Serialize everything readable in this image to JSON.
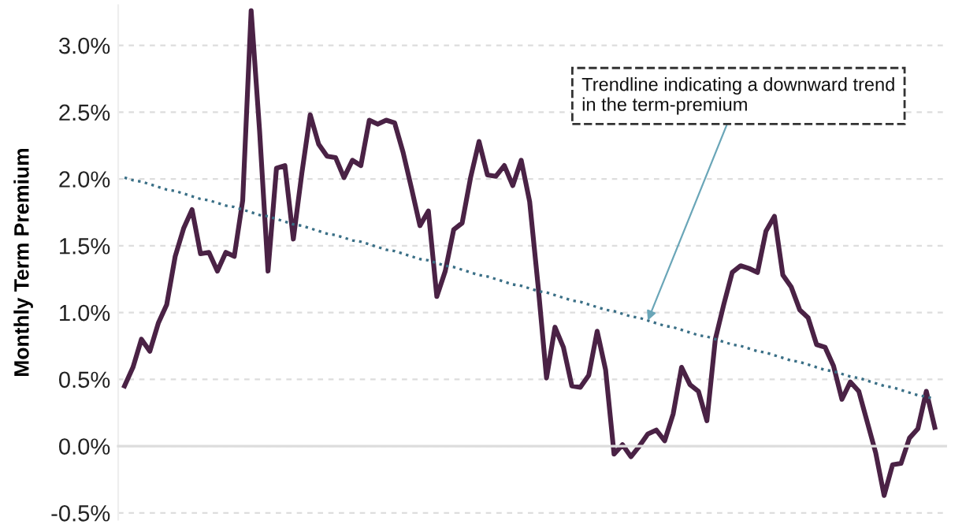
{
  "chart_data": {
    "type": "line",
    "ylabel": "Monthly Term Premium",
    "annotations": [
      "Trendline indicating a downward trend\nin the term-premium"
    ],
    "categories": [
      null,
      null,
      null,
      null,
      null,
      null,
      null,
      null,
      null,
      null,
      null,
      null,
      null,
      null,
      null,
      null,
      null,
      null,
      null,
      null,
      null,
      null,
      null,
      null,
      null,
      null,
      null,
      null,
      null,
      null,
      null,
      null,
      null,
      null,
      null,
      null,
      null,
      null,
      null,
      null,
      null,
      null,
      null,
      null,
      null,
      null,
      null,
      null,
      null,
      null,
      null,
      null,
      null,
      null,
      null,
      null,
      null,
      null,
      null,
      null,
      null,
      null,
      null,
      null,
      null,
      null,
      null,
      null,
      null,
      null,
      null,
      null,
      null,
      null,
      null,
      null,
      null,
      null,
      null,
      null,
      null,
      null,
      null,
      null,
      null,
      null,
      null,
      null,
      null,
      null,
      null,
      null,
      null,
      null,
      null,
      null,
      null
    ],
    "series": [
      {
        "color": "#4a2245",
        "values": [
          0.45,
          0.59,
          0.8,
          0.71,
          0.92,
          1.06,
          1.42,
          1.63,
          1.77,
          1.44,
          1.45,
          1.31,
          1.45,
          1.42,
          1.84,
          3.26,
          2.36,
          1.31,
          2.08,
          2.1,
          1.55,
          2.04,
          2.48,
          2.26,
          2.17,
          2.16,
          2.01,
          2.14,
          2.1,
          2.44,
          2.41,
          2.44,
          2.42,
          2.2,
          1.93,
          1.65,
          1.76,
          1.12,
          1.31,
          1.62,
          1.67,
          2.01,
          2.28,
          2.03,
          2.02,
          2.1,
          1.95,
          2.14,
          1.83,
          1.2,
          0.51,
          0.89,
          0.74,
          0.45,
          0.44,
          0.53,
          0.86,
          0.57,
          -0.06,
          0.01,
          -0.08,
          0.0,
          0.09,
          0.12,
          0.04,
          0.24,
          0.59,
          0.46,
          0.41,
          0.19,
          0.8,
          1.06,
          1.3,
          1.35,
          1.33,
          1.3,
          1.61,
          1.72,
          1.28,
          1.19,
          1.02,
          0.96,
          0.76,
          0.74,
          0.6,
          0.35,
          0.48,
          0.41,
          0.18,
          -0.05,
          -0.37,
          -0.14,
          -0.13,
          0.06,
          0.13,
          0.41,
          0.14
        ]
      },
      {
        "type": "line",
        "color": "#3a6f86",
        "line_style": "dotted",
        "values": [
          2.01,
          1.99,
          1.98,
          1.96,
          1.94,
          1.92,
          1.91,
          1.89,
          1.87,
          1.85,
          1.84,
          1.82,
          1.8,
          1.79,
          1.77,
          1.75,
          1.73,
          1.72,
          1.7,
          1.68,
          1.66,
          1.65,
          1.63,
          1.61,
          1.59,
          1.58,
          1.56,
          1.54,
          1.53,
          1.51,
          1.49,
          1.47,
          1.46,
          1.44,
          1.42,
          1.4,
          1.39,
          1.37,
          1.35,
          1.34,
          1.32,
          1.3,
          1.28,
          1.27,
          1.25,
          1.23,
          1.21,
          1.2,
          1.18,
          1.16,
          1.15,
          1.13,
          1.11,
          1.09,
          1.08,
          1.06,
          1.04,
          1.02,
          1.01,
          0.99,
          0.97,
          0.96,
          0.94,
          0.92,
          0.9,
          0.89,
          0.87,
          0.85,
          0.83,
          0.82,
          0.8,
          0.78,
          0.76,
          0.75,
          0.73,
          0.71,
          0.7,
          0.68,
          0.66,
          0.64,
          0.63,
          0.61,
          0.59,
          0.57,
          0.56,
          0.54,
          0.52,
          0.51,
          0.49,
          0.47,
          0.45,
          0.44,
          0.42,
          0.4,
          0.38,
          0.37,
          0.35
        ]
      }
    ],
    "ylim": [
      -0.55,
      3.3
    ],
    "yticks": [
      {
        "value": -0.5,
        "label": "-0.5%"
      },
      {
        "value": 0,
        "label": "0.0%"
      },
      {
        "value": 0.5,
        "label": "0.5%"
      },
      {
        "value": 1,
        "label": "1.0%"
      },
      {
        "value": 1.5,
        "label": "1.5%"
      },
      {
        "value": 2,
        "label": "2.0%"
      },
      {
        "value": 2.5,
        "label": "2.5%"
      },
      {
        "value": 3,
        "label": "3.0%"
      }
    ],
    "grid": "y",
    "marker": "none",
    "line_style": "solid"
  }
}
